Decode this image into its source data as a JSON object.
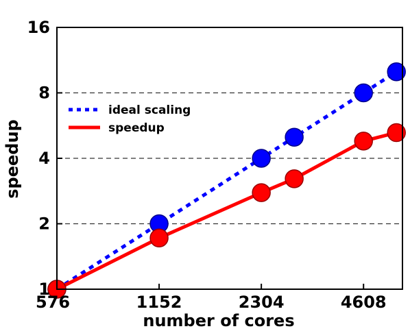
{
  "chart_data": {
    "type": "line",
    "xlabel": "number of cores",
    "ylabel": "speedup",
    "xscale": "log2",
    "yscale": "log2",
    "xlim": [
      576,
      6000
    ],
    "ylim": [
      1,
      16
    ],
    "x_ticks": [
      576,
      1152,
      2304,
      4608
    ],
    "x_tick_labels": [
      "576",
      "1152",
      "2304",
      "4608"
    ],
    "y_ticks": [
      1,
      2,
      4,
      8,
      16
    ],
    "y_tick_labels": [
      "1",
      "2",
      "4",
      "8",
      "16"
    ],
    "grid": "horizontal dashed",
    "legend_position": "upper-left",
    "series": [
      {
        "name": "ideal scaling",
        "color": "#0000ff",
        "line_style": "dotted",
        "marker": "circle",
        "x": [
          576,
          1152,
          2304,
          2880,
          4608,
          5760
        ],
        "y": [
          1,
          2,
          4,
          5,
          8,
          10
        ]
      },
      {
        "name": "speedup",
        "color": "#ff0000",
        "line_style": "solid",
        "marker": "circle",
        "x": [
          576,
          1152,
          2304,
          2880,
          4608,
          5760
        ],
        "y": [
          1,
          1.72,
          2.78,
          3.22,
          4.8,
          5.25
        ]
      }
    ]
  }
}
